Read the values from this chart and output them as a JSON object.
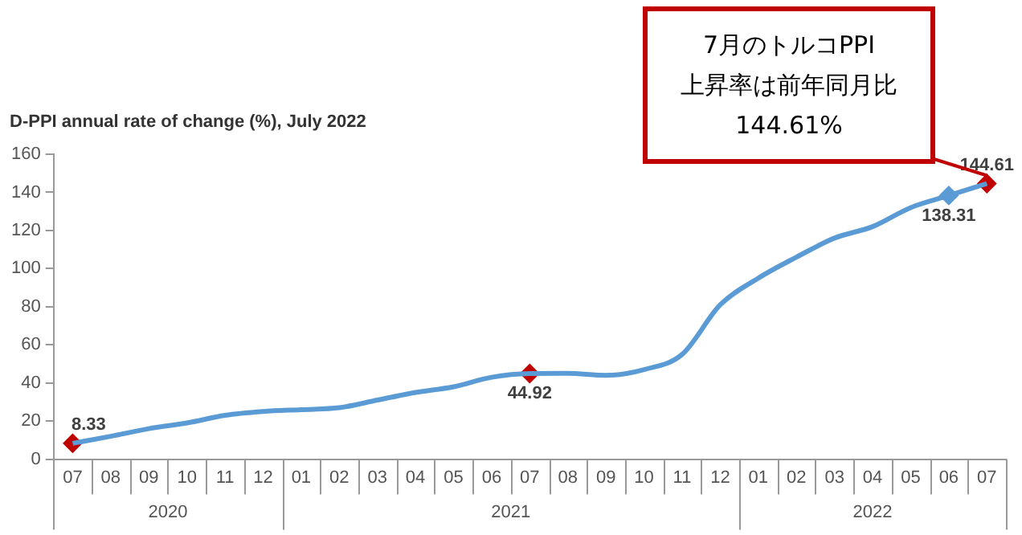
{
  "chart_data": {
    "type": "line",
    "title": "D-PPI annual rate of change (%), July 2022",
    "categories": [
      "07",
      "08",
      "09",
      "10",
      "11",
      "12",
      "01",
      "02",
      "03",
      "04",
      "05",
      "06",
      "07",
      "08",
      "09",
      "10",
      "11",
      "12",
      "01",
      "02",
      "03",
      "04",
      "05",
      "06",
      "07"
    ],
    "series": [
      {
        "color": "#5b9bd5",
        "marker": "none",
        "values": [
          8.33,
          12,
          16,
          19,
          23,
          25,
          26,
          27,
          31,
          35,
          38,
          43,
          44.92,
          45,
          44,
          47,
          55,
          81,
          95,
          106,
          116,
          122,
          132,
          138.31,
          144.61
        ]
      },
      {
        "type": "scatter",
        "color": "#c00000",
        "marker": "diamond",
        "values": [
          8.33,
          null,
          null,
          null,
          null,
          null,
          null,
          null,
          null,
          null,
          null,
          null,
          44.92,
          null,
          null,
          null,
          null,
          null,
          null,
          null,
          null,
          null,
          null,
          138.31,
          144.61
        ],
        "value_labels": [
          "8.33",
          null,
          null,
          null,
          null,
          null,
          null,
          null,
          null,
          null,
          null,
          null,
          "44.92",
          null,
          null,
          null,
          null,
          null,
          null,
          null,
          null,
          null,
          null,
          "138.31",
          "144.61"
        ],
        "colors": [
          "#c00000",
          null,
          null,
          null,
          null,
          null,
          null,
          null,
          null,
          null,
          null,
          null,
          "#c00000",
          null,
          null,
          null,
          null,
          null,
          null,
          null,
          null,
          null,
          null,
          "#5b9bd5",
          "#c00000"
        ]
      }
    ],
    "ylim": [
      0,
      160
    ],
    "yticks": [
      0,
      20,
      40,
      60,
      80,
      100,
      120,
      140,
      160
    ],
    "annotations": [
      "7月のトルコPPI\n上昇率は前年同月比\n144.61%",
      "2020",
      "2021",
      "2022"
    ]
  }
}
